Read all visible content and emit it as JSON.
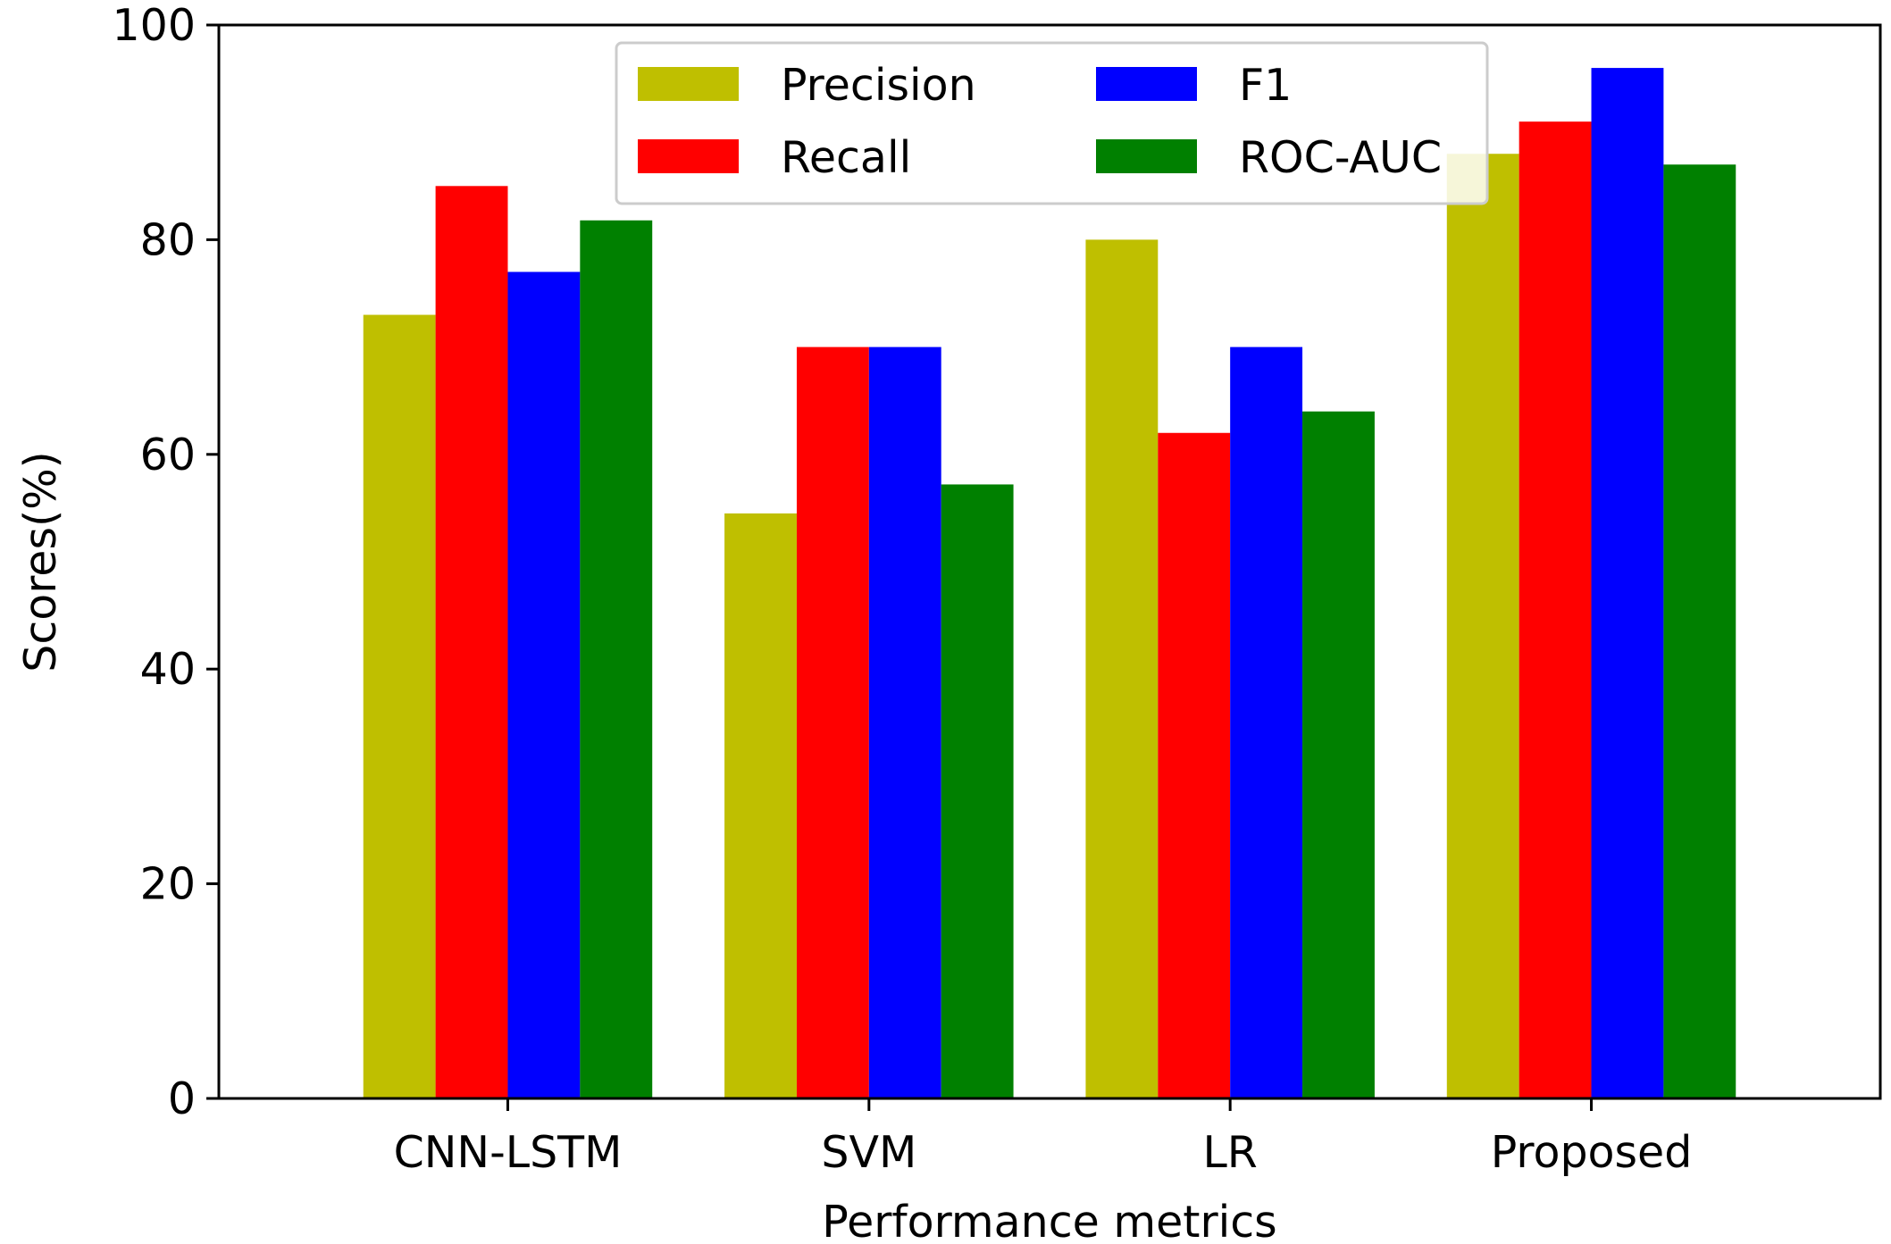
{
  "chart_data": {
    "type": "bar",
    "title": "",
    "xlabel": "Performance metrics",
    "ylabel": "Scores(%)",
    "ylim": [
      0,
      100
    ],
    "yticks": [
      0,
      20,
      40,
      60,
      80,
      100
    ],
    "grid": false,
    "legend_position": "top-center",
    "categories": [
      "CNN-LSTM",
      "SVM",
      "LR",
      "Proposed"
    ],
    "series": [
      {
        "name": "Precision",
        "color": "#bfbf00",
        "values": [
          73,
          54.5,
          80,
          88
        ]
      },
      {
        "name": "Recall",
        "color": "#ff0000",
        "values": [
          85,
          70,
          62,
          91
        ]
      },
      {
        "name": "F1",
        "color": "#0000ff",
        "values": [
          77,
          70,
          70,
          96
        ]
      },
      {
        "name": "ROC-AUC",
        "color": "#008000",
        "values": [
          81.8,
          57.2,
          64,
          87
        ]
      }
    ]
  }
}
